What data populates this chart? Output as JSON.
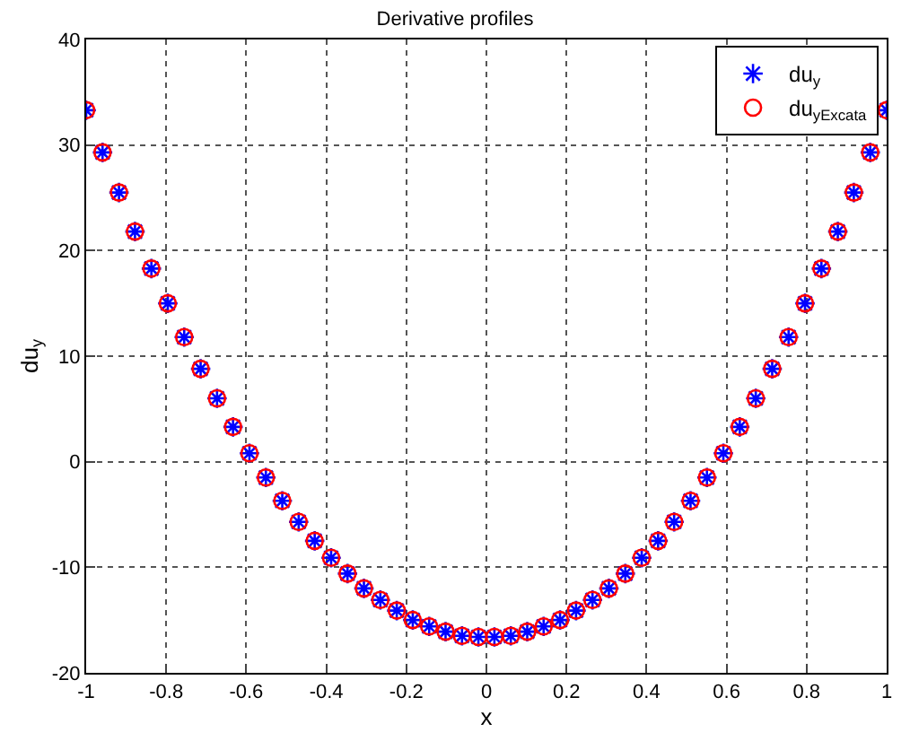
{
  "chart_data": {
    "type": "scatter",
    "title": "Derivative profiles",
    "xlabel": "x",
    "ylabel": "du$_{y}$",
    "x": [
      -1.0,
      -0.959,
      -0.918,
      -0.878,
      -0.837,
      -0.796,
      -0.755,
      -0.714,
      -0.673,
      -0.633,
      -0.592,
      -0.551,
      -0.51,
      -0.469,
      -0.429,
      -0.388,
      -0.347,
      -0.306,
      -0.265,
      -0.224,
      -0.184,
      -0.143,
      -0.102,
      -0.061,
      -0.02,
      0.02,
      0.061,
      0.102,
      0.143,
      0.184,
      0.224,
      0.265,
      0.306,
      0.347,
      0.388,
      0.429,
      0.469,
      0.51,
      0.551,
      0.592,
      0.633,
      0.673,
      0.714,
      0.755,
      0.796,
      0.837,
      0.878,
      0.918,
      0.959,
      1.0
    ],
    "series": [
      {
        "name": "du$_{y}$",
        "color": "#0000ff",
        "marker": "cross",
        "values": [
          33.3,
          29.3,
          25.5,
          21.8,
          18.3,
          15.0,
          11.8,
          8.8,
          6.0,
          3.3,
          0.8,
          -1.5,
          -3.7,
          -5.7,
          -7.5,
          -9.1,
          -10.6,
          -12.0,
          -13.1,
          -14.1,
          -15.0,
          -15.6,
          -16.1,
          -16.5,
          -16.6,
          -16.6,
          -16.5,
          -16.1,
          -15.6,
          -15.0,
          -14.1,
          -13.1,
          -12.0,
          -10.6,
          -9.1,
          -7.5,
          -5.7,
          -3.7,
          -1.5,
          0.8,
          3.3,
          6.0,
          8.8,
          11.8,
          15.0,
          18.3,
          21.8,
          25.5,
          29.3,
          33.3
        ]
      },
      {
        "name": "du$_{y}$$_{Excata}$",
        "color": "#ff0000",
        "marker": "circle",
        "values": [
          33.3,
          29.3,
          25.5,
          21.8,
          18.3,
          15.0,
          11.8,
          8.8,
          6.0,
          3.3,
          0.8,
          -1.5,
          -3.7,
          -5.7,
          -7.5,
          -9.1,
          -10.6,
          -12.0,
          -13.1,
          -14.1,
          -15.0,
          -15.6,
          -16.1,
          -16.5,
          -16.6,
          -16.6,
          -16.5,
          -16.1,
          -15.6,
          -15.0,
          -14.1,
          -13.1,
          -12.0,
          -10.6,
          -9.1,
          -7.5,
          -5.7,
          -3.7,
          -1.5,
          0.8,
          3.3,
          6.0,
          8.8,
          11.8,
          15.0,
          18.3,
          21.8,
          25.5,
          29.3,
          33.3
        ]
      }
    ],
    "xlim": [
      -1,
      1
    ],
    "xticks": [
      -1,
      -0.8,
      -0.6,
      -0.4,
      -0.2,
      0,
      0.2,
      0.4,
      0.6,
      0.8,
      1
    ],
    "ylim": [
      -20,
      40
    ],
    "yticks": [
      -20,
      -10,
      0,
      10,
      20,
      30,
      40
    ],
    "grid": true,
    "legend": "top right"
  }
}
